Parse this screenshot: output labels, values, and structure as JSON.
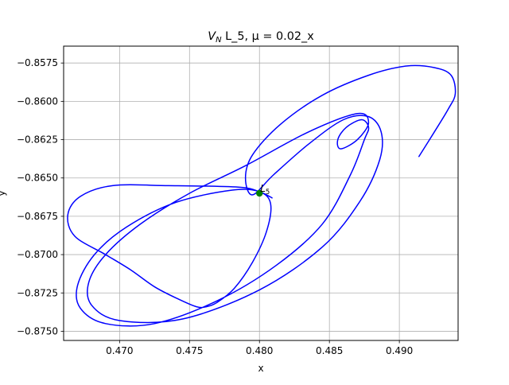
{
  "chart_data": {
    "type": "line",
    "title_main": "V",
    "title_sub": "N",
    "title_rest": " L_5, μ = 0.02_x",
    "xlabel": "x",
    "ylabel": "y",
    "xlim": [
      0.466,
      0.4942
    ],
    "ylim": [
      -0.8756,
      -0.8564
    ],
    "grid": true,
    "x_ticks": [
      0.47,
      0.475,
      0.48,
      0.485,
      0.49
    ],
    "x_tick_labels": [
      "0.470",
      "0.475",
      "0.480",
      "0.485",
      "0.490"
    ],
    "y_ticks": [
      -0.8575,
      -0.86,
      -0.8625,
      -0.865,
      -0.8675,
      -0.87,
      -0.8725,
      -0.875
    ],
    "y_tick_labels": [
      "−0.8575",
      "−0.8600",
      "−0.8625",
      "−0.8650",
      "−0.8675",
      "−0.8700",
      "−0.8725",
      "−0.8750"
    ],
    "point": {
      "label_main": "L",
      "label_sub": "5",
      "x": 0.48,
      "y": -0.866,
      "color": "#008000"
    },
    "series": [
      {
        "color": "#0000ff",
        "x": [
          0.4914,
          0.4925,
          0.4935,
          0.494,
          0.4937,
          0.4925,
          0.4905,
          0.4878,
          0.4845,
          0.4815,
          0.4795,
          0.479,
          0.4795,
          0.481,
          0.4835,
          0.486,
          0.4878,
          0.4887,
          0.4886,
          0.4872,
          0.4845,
          0.48,
          0.4745,
          0.47,
          0.468,
          0.4678,
          0.469,
          0.4715,
          0.475,
          0.479,
          0.4835,
          0.487,
          0.4878,
          0.487,
          0.4858,
          0.4856,
          0.4862,
          0.4873,
          0.4878,
          0.4875,
          0.4865,
          0.4845,
          0.4812,
          0.477,
          0.4725,
          0.469,
          0.4672,
          0.467,
          0.4682,
          0.4705,
          0.474,
          0.478,
          0.48,
          0.4808,
          0.4805,
          0.4795,
          0.4782,
          0.477,
          0.4762,
          0.4755,
          0.4742,
          0.4725,
          0.4708,
          0.469,
          0.4668,
          0.4663,
          0.4672,
          0.4695,
          0.4735,
          0.4785,
          0.48,
          0.4805,
          0.4809
        ],
        "y": [
          -0.8636,
          -0.862,
          -0.8605,
          -0.8595,
          -0.8583,
          -0.8578,
          -0.8577,
          -0.8583,
          -0.8596,
          -0.8615,
          -0.8635,
          -0.865,
          -0.8661,
          -0.8648,
          -0.8628,
          -0.8612,
          -0.861,
          -0.862,
          -0.8638,
          -0.8665,
          -0.8695,
          -0.8723,
          -0.8742,
          -0.8743,
          -0.8733,
          -0.8718,
          -0.87,
          -0.868,
          -0.866,
          -0.8642,
          -0.862,
          -0.8608,
          -0.8614,
          -0.8625,
          -0.8631,
          -0.8625,
          -0.8617,
          -0.8612,
          -0.8617,
          -0.8625,
          -0.8648,
          -0.868,
          -0.8707,
          -0.873,
          -0.8745,
          -0.8745,
          -0.8735,
          -0.872,
          -0.87,
          -0.8682,
          -0.8666,
          -0.8658,
          -0.8659,
          -0.8667,
          -0.8685,
          -0.8705,
          -0.8722,
          -0.8731,
          -0.8734,
          -0.8734,
          -0.8729,
          -0.8721,
          -0.871,
          -0.87,
          -0.8688,
          -0.8674,
          -0.8662,
          -0.8655,
          -0.8655,
          -0.8656,
          -0.8659,
          -0.8661,
          -0.8663
        ]
      }
    ]
  }
}
